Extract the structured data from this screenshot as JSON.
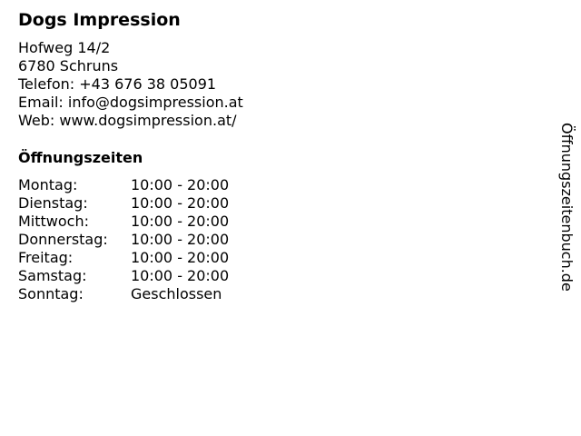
{
  "business": {
    "name": "Dogs Impression",
    "address_line1": "Hofweg 14/2",
    "address_line2": "6780 Schruns",
    "phone": "Telefon: +43 676 38 05091",
    "email": "Email: info@dogsimpression.at",
    "web": "Web: www.dogsimpression.at/"
  },
  "hours": {
    "title": "Öffnungszeiten",
    "rows": [
      {
        "day": "Montag:",
        "time": "10:00 - 20:00"
      },
      {
        "day": "Dienstag:",
        "time": "10:00 - 20:00"
      },
      {
        "day": "Mittwoch:",
        "time": "10:00 - 20:00"
      },
      {
        "day": "Donnerstag:",
        "time": "10:00 - 20:00"
      },
      {
        "day": "Freitag:",
        "time": "10:00 - 20:00"
      },
      {
        "day": "Samstag:",
        "time": "10:00 - 20:00"
      },
      {
        "day": "Sonntag:",
        "time": "Geschlossen"
      }
    ]
  },
  "watermark": "Öffnungszeitenbuch.de"
}
